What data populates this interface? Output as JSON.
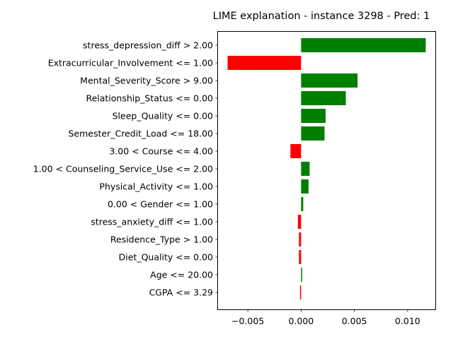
{
  "chart_data": {
    "type": "bar",
    "orientation": "horizontal",
    "title": "LIME explanation - instance 3298 - Pred: 1",
    "xlabel": "",
    "ylabel": "",
    "xlim": [
      -0.0078,
      0.0126
    ],
    "xticks": [
      -0.005,
      0.0,
      0.005,
      0.01
    ],
    "xtick_labels": [
      "−0.005",
      "0.000",
      "0.005",
      "0.010"
    ],
    "grid": false,
    "positive_color": "#008000",
    "negative_color": "#ff0000",
    "categories": [
      "stress_depression_diff > 2.00",
      "Extracurricular_Involvement <= 1.00",
      "Mental_Severity_Score > 9.00",
      "Relationship_Status <= 0.00",
      "Sleep_Quality <= 0.00",
      "Semester_Credit_Load <= 18.00",
      "3.00 < Course <= 4.00",
      "1.00 < Counseling_Service_Use <= 2.00",
      "Physical_Activity <= 1.00",
      "0.00 < Gender <= 1.00",
      "stress_anxiety_diff <= 1.00",
      "Residence_Type > 1.00",
      "Diet_Quality <= 0.00",
      "Age <= 20.00",
      "CGPA <= 3.29"
    ],
    "values": [
      0.0117,
      -0.0069,
      0.0053,
      0.0042,
      0.0023,
      0.0022,
      -0.001,
      0.0008,
      0.0007,
      0.0002,
      -0.0003,
      -0.0002,
      -0.0002,
      0.0001,
      -0.0001
    ]
  }
}
